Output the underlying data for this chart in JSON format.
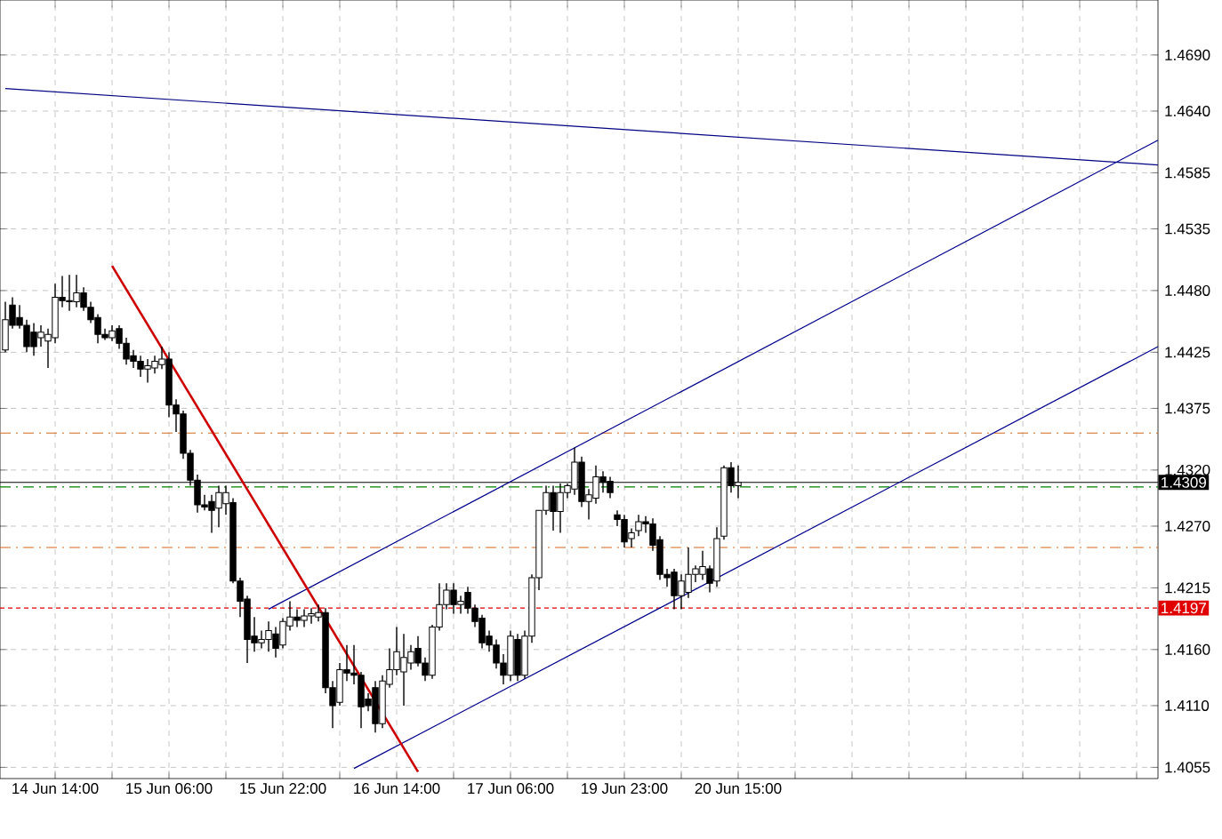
{
  "chart_data": {
    "type": "candlestick",
    "color": "#000000",
    "categories": [
      null,
      null,
      null,
      null,
      null,
      null,
      null,
      "14 Jun 14:00",
      null,
      null,
      null,
      null,
      null,
      null,
      null,
      null,
      null,
      null,
      null,
      null,
      null,
      null,
      null,
      "15 Jun 06:00",
      null,
      null,
      null,
      null,
      null,
      null,
      null,
      null,
      null,
      null,
      null,
      null,
      null,
      null,
      null,
      "15 Jun 22:00",
      null,
      null,
      null,
      null,
      null,
      null,
      null,
      null,
      null,
      null,
      null,
      null,
      null,
      null,
      null,
      "16 Jun 14:00",
      null,
      null,
      null,
      null,
      null,
      null,
      null,
      null,
      null,
      null,
      null,
      null,
      null,
      null,
      null,
      "17 Jun 06:00",
      null,
      null,
      null,
      null,
      null,
      null,
      null,
      null,
      null,
      null,
      null,
      null,
      null,
      null,
      null,
      "19 Jun 23:00",
      null,
      null,
      null,
      null,
      null,
      null,
      null,
      null,
      null,
      null,
      null,
      null,
      null,
      null,
      null,
      "20 Jun 15:00",
      null,
      null,
      null,
      null,
      null,
      null,
      null,
      null,
      null,
      null,
      null,
      null,
      null,
      null,
      null,
      null,
      null,
      null,
      null,
      null,
      null,
      null,
      null,
      null,
      null,
      null,
      null,
      null,
      null,
      null,
      null,
      null,
      null,
      null,
      null,
      null,
      null,
      null,
      null,
      null,
      null,
      null,
      null,
      null,
      null,
      null,
      null,
      null,
      null,
      null,
      null,
      null,
      null,
      null,
      null,
      null,
      null,
      null,
      null
    ],
    "ohlc": [
      [
        1.4427,
        1.447,
        1.4425,
        1.4454
      ],
      [
        1.4467,
        1.4474,
        1.4446,
        1.4449
      ],
      [
        1.4456,
        1.4467,
        1.4446,
        1.4449
      ],
      [
        1.4449,
        1.4454,
        1.4425,
        1.443
      ],
      [
        1.4443,
        1.4451,
        1.4422,
        1.443
      ],
      [
        1.4438,
        1.4449,
        1.443,
        1.4443
      ],
      [
        1.4435,
        1.4446,
        1.4411,
        1.4441
      ],
      [
        1.4438,
        1.4486,
        1.4433,
        1.4474
      ],
      [
        1.4474,
        1.4493,
        1.4465,
        1.4471
      ],
      [
        1.4471,
        1.4494,
        1.4462,
        1.447
      ],
      [
        1.447,
        1.4494,
        1.4465,
        1.4478
      ],
      [
        1.4478,
        1.4483,
        1.4462,
        1.4465
      ],
      [
        1.4465,
        1.447,
        1.4451,
        1.4454
      ],
      [
        1.4456,
        1.4459,
        1.4433,
        1.4441
      ],
      [
        1.4441,
        1.4446,
        1.4436,
        1.4438
      ],
      [
        1.4438,
        1.4449,
        1.4435,
        1.4444
      ],
      [
        1.4446,
        1.4449,
        1.4428,
        1.4433
      ],
      [
        1.4433,
        1.4438,
        1.4414,
        1.4419
      ],
      [
        1.4422,
        1.4427,
        1.4411,
        1.4417
      ],
      [
        1.4417,
        1.4422,
        1.4403,
        1.441
      ],
      [
        1.441,
        1.4419,
        1.4398,
        1.4413
      ],
      [
        1.4411,
        1.4422,
        1.4406,
        1.4417
      ],
      [
        1.4414,
        1.443,
        1.441,
        1.4419
      ],
      [
        1.4419,
        1.4425,
        1.4367,
        1.4378
      ],
      [
        1.4378,
        1.4383,
        1.4354,
        1.437
      ],
      [
        1.437,
        1.4373,
        1.433,
        1.4335
      ],
      [
        1.4335,
        1.4338,
        1.4306,
        1.4311
      ],
      [
        1.4311,
        1.4316,
        1.4282,
        1.4289
      ],
      [
        1.4289,
        1.4298,
        1.4284,
        1.4287
      ],
      [
        1.4292,
        1.4298,
        1.4264,
        1.4284
      ],
      [
        1.4286,
        1.4306,
        1.4269,
        1.43
      ],
      [
        1.429,
        1.4306,
        1.428,
        1.43
      ],
      [
        1.4291,
        1.4295,
        1.4219,
        1.4221
      ],
      [
        1.4221,
        1.4224,
        1.4189,
        1.4203
      ],
      [
        1.4205,
        1.4208,
        1.4148,
        1.4169
      ],
      [
        1.4172,
        1.4189,
        1.4158,
        1.4166
      ],
      [
        1.4166,
        1.4177,
        1.4161,
        1.4169
      ],
      [
        1.4169,
        1.4185,
        1.4158,
        1.4177
      ],
      [
        1.4174,
        1.418,
        1.4153,
        1.4161
      ],
      [
        1.4164,
        1.4188,
        1.4161,
        1.4185
      ],
      [
        1.4181,
        1.4203,
        1.4177,
        1.4189
      ],
      [
        1.4189,
        1.4196,
        1.418,
        1.4186
      ],
      [
        1.4186,
        1.4196,
        1.418,
        1.419
      ],
      [
        1.419,
        1.4197,
        1.4183,
        1.4192
      ],
      [
        1.4189,
        1.42,
        1.4185,
        1.4193
      ],
      [
        1.4193,
        1.4197,
        1.4121,
        1.4126
      ],
      [
        1.4126,
        1.4132,
        1.409,
        1.411
      ],
      [
        1.4113,
        1.4148,
        1.411,
        1.4142
      ],
      [
        1.4142,
        1.4164,
        1.4132,
        1.4139
      ],
      [
        1.4139,
        1.4164,
        1.4129,
        1.4137
      ],
      [
        1.4137,
        1.414,
        1.409,
        1.4109
      ],
      [
        1.4116,
        1.4121,
        1.4105,
        1.411
      ],
      [
        1.4126,
        1.4132,
        1.4086,
        1.4094
      ],
      [
        1.4094,
        1.4137,
        1.409,
        1.4132
      ],
      [
        1.4129,
        1.4161,
        1.4126,
        1.4142
      ],
      [
        1.4142,
        1.418,
        1.4137,
        1.4158
      ],
      [
        1.414,
        1.4174,
        1.411,
        1.4153
      ],
      [
        1.4148,
        1.4164,
        1.4142,
        1.4158
      ],
      [
        1.4161,
        1.4172,
        1.4145,
        1.4148
      ],
      [
        1.4148,
        1.4153,
        1.4132,
        1.4137
      ],
      [
        1.4137,
        1.4182,
        1.4134,
        1.418
      ],
      [
        1.418,
        1.4219,
        1.4177,
        1.42
      ],
      [
        1.42,
        1.4219,
        1.4196,
        1.4213
      ],
      [
        1.4213,
        1.4219,
        1.4192,
        1.42
      ],
      [
        1.42,
        1.4208,
        1.4192,
        1.4203
      ],
      [
        1.4211,
        1.4216,
        1.4192,
        1.4197
      ],
      [
        1.4197,
        1.42,
        1.418,
        1.4185
      ],
      [
        1.4188,
        1.4191,
        1.4161,
        1.4166
      ],
      [
        1.4172,
        1.4177,
        1.4158,
        1.4164
      ],
      [
        1.4164,
        1.4169,
        1.4143,
        1.4148
      ],
      [
        1.4148,
        1.4156,
        1.4129,
        1.4137
      ],
      [
        1.4137,
        1.4177,
        1.4132,
        1.4172
      ],
      [
        1.4169,
        1.4174,
        1.4132,
        1.4137
      ],
      [
        1.4137,
        1.4177,
        1.4134,
        1.4172
      ],
      [
        1.4172,
        1.4227,
        1.4166,
        1.4224
      ],
      [
        1.4224,
        1.4284,
        1.4213,
        1.4284
      ],
      [
        1.4284,
        1.4306,
        1.428,
        1.43
      ],
      [
        1.43,
        1.4306,
        1.4266,
        1.4283
      ],
      [
        1.4283,
        1.4308,
        1.4264,
        1.43
      ],
      [
        1.43,
        1.4308,
        1.4295,
        1.4306
      ],
      [
        1.4303,
        1.434,
        1.4298,
        1.4327
      ],
      [
        1.4327,
        1.4332,
        1.4287,
        1.4292
      ],
      [
        1.4292,
        1.4303,
        1.4276,
        1.4298
      ],
      [
        1.4295,
        1.4324,
        1.429,
        1.4314
      ],
      [
        1.4314,
        1.4319,
        1.43,
        1.4309
      ],
      [
        1.431,
        1.4314,
        1.4295,
        1.43
      ],
      [
        1.428,
        1.4284,
        1.427,
        1.4276
      ],
      [
        1.4276,
        1.428,
        1.4251,
        1.4256
      ],
      [
        1.4259,
        1.4268,
        1.4251,
        1.4264
      ],
      [
        1.4266,
        1.428,
        1.4261,
        1.4274
      ],
      [
        1.4274,
        1.4279,
        1.4264,
        1.4272
      ],
      [
        1.4272,
        1.4277,
        1.4248,
        1.4253
      ],
      [
        1.4258,
        1.4261,
        1.4222,
        1.4227
      ],
      [
        1.4227,
        1.4232,
        1.4216,
        1.4224
      ],
      [
        1.4229,
        1.4232,
        1.4196,
        1.4208
      ],
      [
        1.4208,
        1.4227,
        1.4196,
        1.4221
      ],
      [
        1.4211,
        1.4251,
        1.4206,
        1.4227
      ],
      [
        1.4227,
        1.4235,
        1.422,
        1.4232
      ],
      [
        1.4227,
        1.4248,
        1.4222,
        1.4234
      ],
      [
        1.4232,
        1.4235,
        1.4211,
        1.4219
      ],
      [
        1.4221,
        1.4269,
        1.4216,
        1.4259
      ],
      [
        1.4261,
        1.4324,
        1.4258,
        1.4322
      ],
      [
        1.4322,
        1.4327,
        1.43,
        1.4306
      ],
      [
        1.4306,
        1.4324,
        1.4295,
        1.4309
      ],
      null,
      null,
      null,
      null,
      null,
      null,
      null,
      null,
      null,
      null,
      null,
      null,
      null,
      null,
      null,
      null,
      null,
      null,
      null,
      null,
      null,
      null,
      null,
      null,
      null,
      null,
      null,
      null,
      null,
      null,
      null,
      null,
      null,
      null,
      null,
      null,
      null,
      null,
      null,
      null,
      null,
      null,
      null,
      null,
      null,
      null,
      null,
      null,
      null,
      null,
      null,
      null,
      null,
      null,
      null,
      null,
      null,
      null,
      null
    ],
    "series": [
      {
        "type": "line",
        "color": "#000080",
        "values": [
          1.466,
          null,
          null,
          null,
          null,
          null,
          null,
          null,
          null,
          null,
          null,
          null,
          null,
          null,
          null,
          null,
          null,
          null,
          null,
          null,
          null,
          null,
          null,
          null,
          null,
          null,
          null,
          null,
          null,
          null,
          null,
          null,
          null,
          null,
          null,
          null,
          null,
          null,
          null,
          null,
          null,
          null,
          null,
          null,
          null,
          null,
          null,
          null,
          null,
          null,
          null,
          null,
          null,
          null,
          null,
          null,
          null,
          null,
          null,
          null,
          null,
          null,
          null,
          null,
          null,
          null,
          null,
          null,
          null,
          null,
          null,
          null,
          null,
          null,
          null,
          null,
          null,
          null,
          null,
          null,
          null,
          null,
          null,
          null,
          null,
          null,
          null,
          null,
          null,
          null,
          null,
          null,
          null,
          null,
          null,
          null,
          null,
          null,
          null,
          null,
          null,
          null,
          null,
          null,
          null,
          null,
          null,
          null,
          null,
          null,
          null,
          null,
          null,
          null,
          null,
          null,
          null,
          null,
          null,
          null,
          null,
          null,
          null,
          null,
          null,
          null,
          null,
          null,
          null,
          null,
          null,
          null,
          null,
          null,
          null,
          null,
          null,
          null,
          null,
          null,
          null,
          null,
          null,
          null,
          null,
          null,
          null,
          null,
          null,
          null,
          null,
          null,
          null,
          null,
          null,
          null,
          null,
          null,
          null,
          null,
          null,
          null,
          1.4592
        ]
      },
      {
        "type": "line",
        "color": "#00008b",
        "values": [
          null,
          null,
          null,
          null,
          null,
          null,
          null,
          null,
          null,
          null,
          null,
          null,
          null,
          null,
          null,
          null,
          null,
          null,
          null,
          null,
          null,
          null,
          null,
          null,
          null,
          null,
          null,
          null,
          null,
          null,
          null,
          null,
          null,
          null,
          null,
          null,
          null,
          1.4196,
          null,
          null,
          null,
          null,
          null,
          null,
          null,
          null,
          null,
          null,
          null,
          null,
          null,
          null,
          null,
          null,
          null,
          null,
          null,
          null,
          null,
          null,
          null,
          null,
          null,
          null,
          null,
          null,
          null,
          null,
          null,
          null,
          null,
          null,
          null,
          null,
          null,
          null,
          null,
          null,
          null,
          null,
          null,
          null,
          null,
          null,
          null,
          null,
          null,
          null,
          null,
          null,
          null,
          null,
          null,
          null,
          null,
          null,
          null,
          null,
          null,
          null,
          null,
          null,
          null,
          null,
          null,
          null,
          null,
          null,
          null,
          null,
          null,
          null,
          null,
          null,
          null,
          null,
          null,
          null,
          null,
          null,
          null,
          null,
          null,
          null,
          null,
          null,
          null,
          null,
          null,
          null,
          null,
          null,
          null,
          null,
          null,
          null,
          null,
          null,
          null,
          null,
          null,
          null,
          null,
          null,
          null,
          null,
          null,
          null,
          null,
          null,
          null,
          null,
          null,
          null,
          null,
          null,
          null,
          null,
          null,
          null,
          null,
          null,
          1.4614
        ]
      },
      {
        "type": "line",
        "color": "#00008b",
        "values": [
          null,
          null,
          null,
          null,
          null,
          null,
          null,
          null,
          null,
          null,
          null,
          null,
          null,
          null,
          null,
          null,
          null,
          null,
          null,
          null,
          null,
          null,
          null,
          null,
          null,
          null,
          null,
          null,
          null,
          null,
          null,
          null,
          null,
          null,
          null,
          null,
          null,
          null,
          null,
          null,
          null,
          null,
          null,
          null,
          null,
          null,
          null,
          null,
          null,
          1.4054,
          null,
          null,
          null,
          null,
          null,
          null,
          null,
          null,
          null,
          null,
          null,
          null,
          null,
          null,
          null,
          null,
          null,
          null,
          null,
          null,
          null,
          null,
          null,
          null,
          null,
          null,
          null,
          null,
          null,
          null,
          null,
          null,
          null,
          null,
          null,
          null,
          null,
          null,
          null,
          null,
          null,
          null,
          null,
          null,
          null,
          null,
          null,
          null,
          null,
          null,
          null,
          null,
          null,
          null,
          null,
          null,
          null,
          null,
          null,
          null,
          null,
          null,
          null,
          null,
          null,
          null,
          null,
          null,
          null,
          null,
          null,
          null,
          null,
          null,
          null,
          null,
          null,
          null,
          null,
          null,
          null,
          null,
          null,
          null,
          null,
          null,
          null,
          null,
          null,
          null,
          null,
          null,
          null,
          null,
          null,
          null,
          null,
          null,
          null,
          null,
          null,
          null,
          null,
          null,
          null,
          null,
          null,
          null,
          null,
          null,
          null,
          null,
          1.443
        ]
      },
      {
        "type": "line",
        "color": "#cc0000",
        "values": [
          null,
          null,
          null,
          null,
          null,
          null,
          null,
          null,
          null,
          null,
          null,
          null,
          null,
          null,
          null,
          1.4502,
          null,
          null,
          null,
          null,
          null,
          null,
          null,
          null,
          null,
          null,
          null,
          null,
          null,
          null,
          null,
          null,
          null,
          null,
          null,
          null,
          null,
          null,
          null,
          null,
          null,
          null,
          null,
          null,
          null,
          null,
          null,
          null,
          null,
          null,
          null,
          null,
          null,
          null,
          null,
          null,
          null,
          null,
          1.4051,
          null,
          null,
          null,
          null,
          null,
          null,
          null,
          null,
          null,
          null,
          null,
          null,
          null,
          null,
          null,
          null,
          null,
          null,
          null,
          null,
          null,
          null,
          null,
          null,
          null,
          null,
          null,
          null,
          null,
          null,
          null,
          null,
          null,
          null,
          null,
          null,
          null,
          null,
          null,
          null,
          null,
          null,
          null,
          null,
          null,
          null,
          null,
          null,
          null,
          null,
          null,
          null,
          null,
          null,
          null,
          null,
          null,
          null,
          null,
          null,
          null,
          null,
          null,
          null,
          null,
          null,
          null,
          null,
          null,
          null,
          null,
          null,
          null,
          null,
          null,
          null,
          null,
          null,
          null,
          null,
          null,
          null,
          null,
          null,
          null,
          null,
          null,
          null,
          null,
          null,
          null,
          null,
          null,
          null,
          null,
          null,
          null,
          null,
          null,
          null,
          null,
          null,
          null,
          null
        ]
      }
    ],
    "ref_lines": [
      {
        "axis": "y",
        "value": 1.4353,
        "color": "#d2691e",
        "line_style": "dashed"
      },
      {
        "axis": "y",
        "value": 1.4309,
        "label": "1.4309",
        "color": "#000000",
        "line_style": "solid"
      },
      {
        "axis": "y",
        "value": 1.4305,
        "color": "#008000",
        "line_style": "dashed"
      },
      {
        "axis": "y",
        "value": 1.4251,
        "color": "#d2691e",
        "line_style": "dashed"
      },
      {
        "axis": "y",
        "value": 1.4197,
        "label": "1.4197",
        "color": "#e00000",
        "line_style": "dotted"
      }
    ],
    "ylim": [
      1.4045,
      1.4739
    ],
    "yticks": [
      {
        "value": 1.469,
        "label": "1.4690"
      },
      {
        "value": 1.464,
        "label": "1.4640"
      },
      {
        "value": 1.4585,
        "label": "1.4585"
      },
      {
        "value": 1.4535,
        "label": "1.4535"
      },
      {
        "value": 1.448,
        "label": "1.4480"
      },
      {
        "value": 1.4425,
        "label": "1.4425"
      },
      {
        "value": 1.4375,
        "label": "1.4375"
      },
      {
        "value": 1.432,
        "label": "1.4320"
      },
      {
        "value": 1.427,
        "label": "1.4270"
      },
      {
        "value": 1.4215,
        "label": "1.4215"
      },
      {
        "value": 1.416,
        "label": "1.4160"
      },
      {
        "value": 1.411,
        "label": "1.4110"
      },
      {
        "value": 1.4055,
        "label": "1.4055"
      }
    ],
    "grid": true
  }
}
